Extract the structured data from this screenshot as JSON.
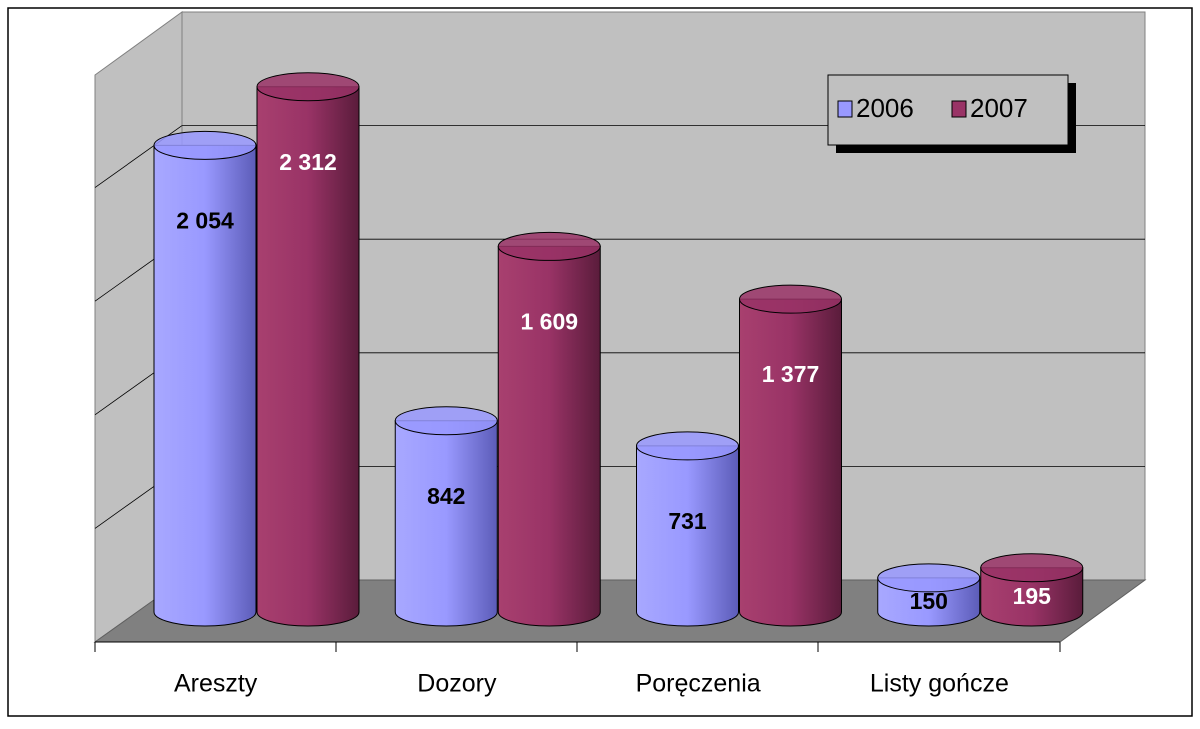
{
  "chart_data": {
    "type": "bar3d",
    "categories": [
      "Areszty",
      "Dozory",
      "Poręczenia",
      "Listy gończe"
    ],
    "series": [
      {
        "name": "2006",
        "color": "#9999ff",
        "label_color": "#000000",
        "values": [
          2054,
          842,
          731,
          150
        ],
        "value_labels": [
          "2 054",
          "842",
          "731",
          "150"
        ]
      },
      {
        "name": "2007",
        "color": "#993366",
        "label_color": "#ffffff",
        "values": [
          2312,
          1609,
          1377,
          195
        ],
        "value_labels": [
          "2 312",
          "1 609",
          "1 377",
          "195"
        ]
      }
    ],
    "ylim": [
      0,
      2500
    ],
    "yticks": [
      0,
      500,
      1000,
      1500,
      2000,
      2500
    ],
    "grid": true,
    "legend": "top-right"
  }
}
